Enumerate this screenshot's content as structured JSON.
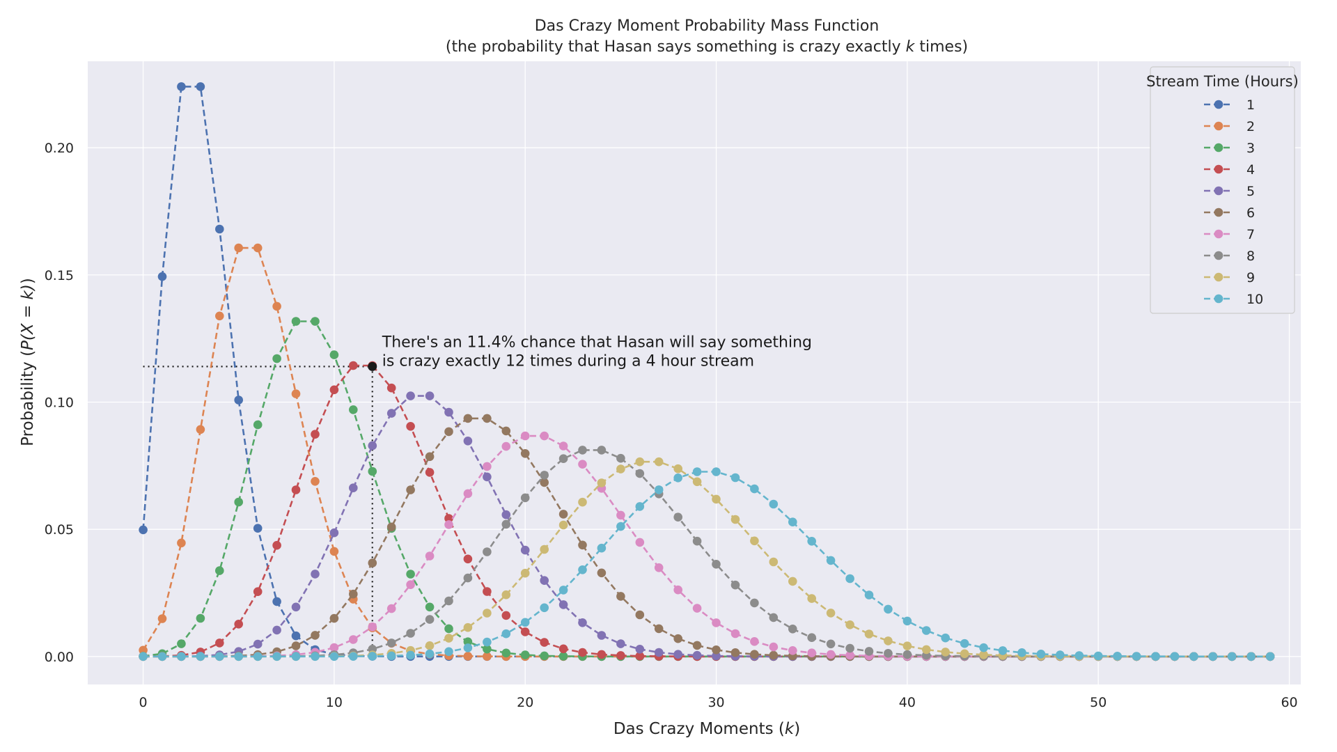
{
  "chart_data": {
    "type": "line",
    "title": "Das Crazy Moment Probability Mass Function",
    "subtitle_pre": "(the probability that Hasan says something is crazy exactly ",
    "subtitle_var": "k",
    "subtitle_post": " times)",
    "xlabel_text": "Das Crazy Moments (",
    "xlabel_var": "k",
    "xlabel_close": ")",
    "ylabel_text": "Probability (",
    "ylabel_math": "P(X = k)",
    "ylabel_close": ")",
    "xlim": [
      -2.9,
      60.6
    ],
    "ylim": [
      -0.011,
      0.234
    ],
    "x_ticks": [
      "0",
      "10",
      "20",
      "30",
      "40",
      "50",
      "60"
    ],
    "y_ticks": [
      "0.00",
      "0.05",
      "0.10",
      "0.15",
      "0.20"
    ],
    "grid": true,
    "legend_title": "Stream Time (Hours)",
    "legend_position": "top-right",
    "series_rate_per_hour": 3,
    "k_range": [
      0,
      59
    ],
    "series": [
      {
        "name": "1",
        "hours": 1,
        "color": "#4c72b0"
      },
      {
        "name": "2",
        "hours": 2,
        "color": "#dd8452"
      },
      {
        "name": "3",
        "hours": 3,
        "color": "#55a868"
      },
      {
        "name": "4",
        "hours": 4,
        "color": "#c44e52"
      },
      {
        "name": "5",
        "hours": 5,
        "color": "#8172b3"
      },
      {
        "name": "6",
        "hours": 6,
        "color": "#937860"
      },
      {
        "name": "7",
        "hours": 7,
        "color": "#da8bc3"
      },
      {
        "name": "8",
        "hours": 8,
        "color": "#8c8c8c"
      },
      {
        "name": "9",
        "hours": 9,
        "color": "#ccb974"
      },
      {
        "name": "10",
        "hours": 10,
        "color": "#64b5cd"
      }
    ],
    "annotation": {
      "x": 12,
      "y": 0.114,
      "line1": "There's an 11.4% chance that Hasan will say something",
      "line2": "is crazy exactly 12 times during a 4 hour stream"
    },
    "plot_background": "#eaeaf2",
    "grid_color": "#ffffff"
  }
}
